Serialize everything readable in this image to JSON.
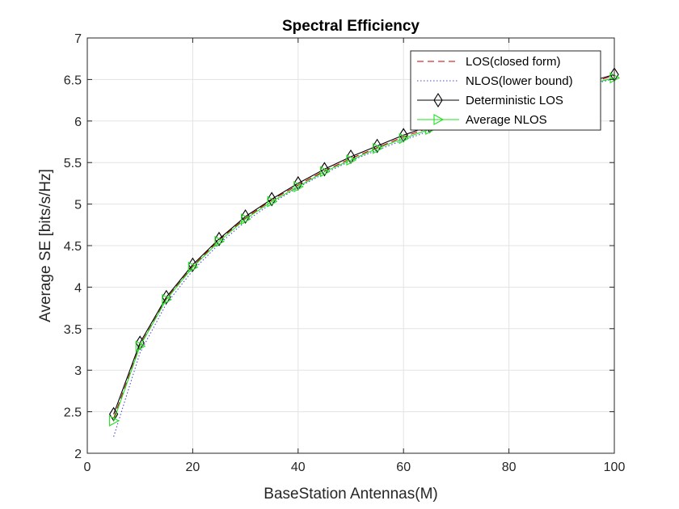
{
  "chart_data": {
    "type": "line",
    "title": "Spectral Efficiency",
    "xlabel": "BaseStation Antennas(M)",
    "ylabel": "Average SE [bits/s/Hz]",
    "xlim": [
      0,
      100
    ],
    "ylim": [
      2,
      7
    ],
    "xticks": [
      0,
      20,
      40,
      60,
      80,
      100
    ],
    "yticks": [
      2,
      2.5,
      3,
      3.5,
      4,
      4.5,
      5,
      5.5,
      6,
      6.5,
      7
    ],
    "grid": true,
    "legend_position": "top-right",
    "x": [
      5,
      10,
      15,
      20,
      25,
      30,
      35,
      40,
      45,
      50,
      55,
      60,
      65,
      70,
      75,
      80,
      85,
      90,
      95,
      100
    ],
    "series": [
      {
        "name": "LOS(closed form)",
        "color": "#c00000",
        "style": "dashed",
        "marker": "none",
        "values": [
          2.42,
          3.3,
          3.86,
          4.25,
          4.57,
          4.83,
          5.05,
          5.23,
          5.4,
          5.55,
          5.68,
          5.81,
          5.92,
          6.02,
          6.12,
          6.21,
          6.29,
          6.37,
          6.45,
          6.55
        ]
      },
      {
        "name": "NLOS(lower bound)",
        "color": "#4a4ad8",
        "style": "dotted",
        "marker": "none",
        "values": [
          2.2,
          3.21,
          3.8,
          4.2,
          4.52,
          4.79,
          5.01,
          5.2,
          5.37,
          5.52,
          5.65,
          5.77,
          5.88,
          5.99,
          6.09,
          6.18,
          6.27,
          6.35,
          6.43,
          6.51
        ]
      },
      {
        "name": "Deterministic LOS",
        "color": "#000000",
        "style": "solid",
        "marker": "diamond",
        "values": [
          2.47,
          3.33,
          3.88,
          4.27,
          4.58,
          4.85,
          5.06,
          5.25,
          5.42,
          5.57,
          5.7,
          5.83,
          5.94,
          6.04,
          6.14,
          6.23,
          6.31,
          6.39,
          6.47,
          6.56
        ]
      },
      {
        "name": "Average NLOS",
        "color": "#22e022",
        "style": "solid",
        "marker": "triangle-right",
        "values": [
          2.39,
          3.29,
          3.85,
          4.24,
          4.55,
          4.82,
          5.03,
          5.21,
          5.39,
          5.53,
          5.67,
          5.79,
          5.9,
          6.01,
          6.1,
          6.19,
          6.28,
          6.36,
          6.44,
          6.52
        ]
      }
    ]
  }
}
